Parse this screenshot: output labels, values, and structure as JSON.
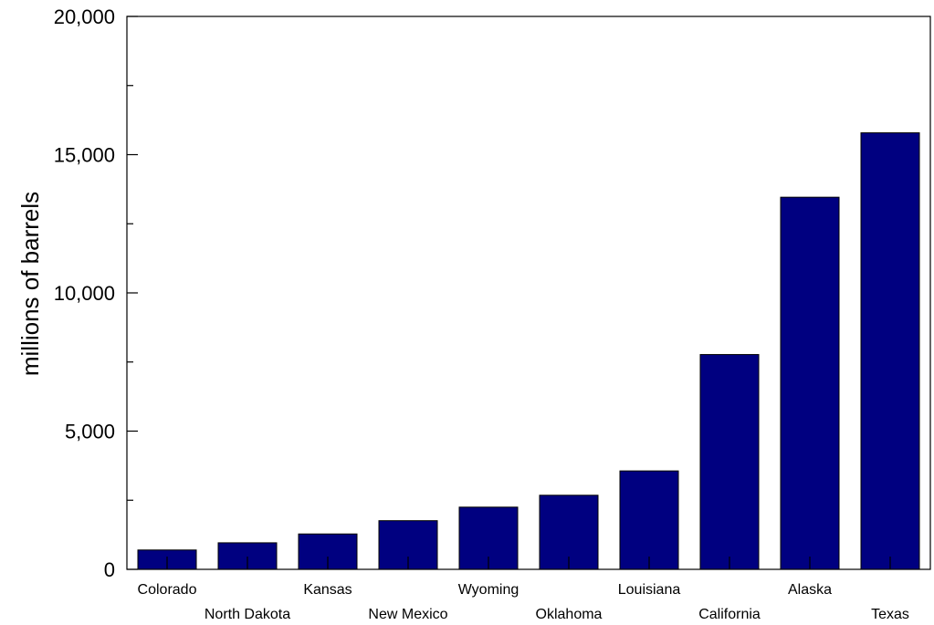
{
  "chart_data": {
    "type": "bar",
    "title": "",
    "xlabel": "",
    "ylabel": "millions of barrels",
    "ylim": [
      0,
      20000
    ],
    "y_ticks": [
      0,
      5000,
      10000,
      15000,
      20000
    ],
    "y_tick_labels": [
      "0",
      "5,000",
      "10,000",
      "15,000",
      "20,000"
    ],
    "y_minor_ticks": [
      2500,
      7500,
      12500,
      17500
    ],
    "grid": false,
    "categories": [
      "Colorado",
      "North Dakota",
      "Kansas",
      "New Mexico",
      "Wyoming",
      "Oklahoma",
      "Louisiana",
      "California",
      "Alaska",
      "Texas"
    ],
    "values": [
      700,
      960,
      1280,
      1760,
      2250,
      2680,
      3560,
      7770,
      13460,
      15790
    ],
    "bar_color": "#000080"
  }
}
